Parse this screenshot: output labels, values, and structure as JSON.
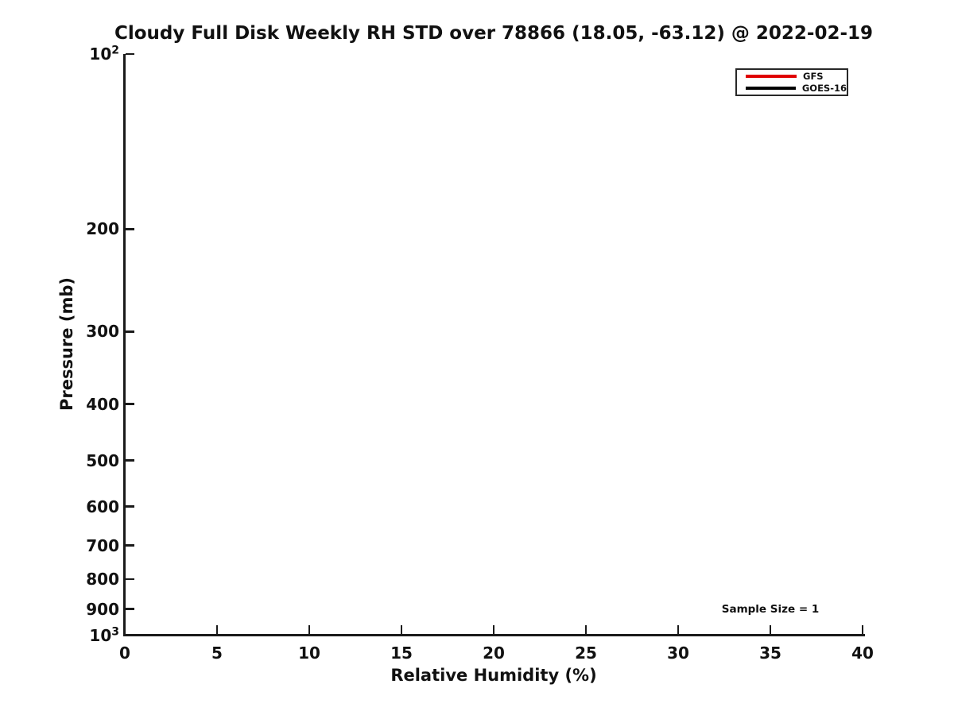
{
  "chart_data": {
    "type": "line",
    "title": "Cloudy Full Disk Weekly RH STD over 78866 (18.05, -63.12) @ 2022-02-19",
    "xlabel": "Relative Humidity (%)",
    "ylabel": "Pressure (mb)",
    "xlim": [
      0,
      40
    ],
    "ylim": [
      100,
      1000
    ],
    "yscale": "log",
    "y_increases_downward": true,
    "grid": false,
    "x_ticks": [
      0,
      5,
      10,
      15,
      20,
      25,
      30,
      35,
      40
    ],
    "x_tick_labels": [
      "0",
      "5",
      "10",
      "15",
      "20",
      "25",
      "30",
      "35",
      "40"
    ],
    "y_ticks": [
      100,
      200,
      300,
      400,
      500,
      600,
      700,
      800,
      900,
      1000
    ],
    "y_tick_labels": [
      "10^2",
      "200",
      "300",
      "400",
      "500",
      "600",
      "700",
      "800",
      "900",
      "10^3"
    ],
    "legend": {
      "position": "top-right",
      "entries": [
        {
          "label": "GFS",
          "color": "#e00000"
        },
        {
          "label": "GOES-16",
          "color": "#000000"
        }
      ]
    },
    "series": [
      {
        "name": "GFS",
        "color": "#e00000",
        "x": [],
        "y": []
      },
      {
        "name": "GOES-16",
        "color": "#000000",
        "x": [],
        "y": []
      }
    ],
    "annotations": [
      {
        "text": "Sample Size = 1",
        "x": 35,
        "y": 900
      }
    ]
  },
  "colors": {
    "axis": "#1a1a1a",
    "text": "#111111",
    "background": "#ffffff"
  }
}
